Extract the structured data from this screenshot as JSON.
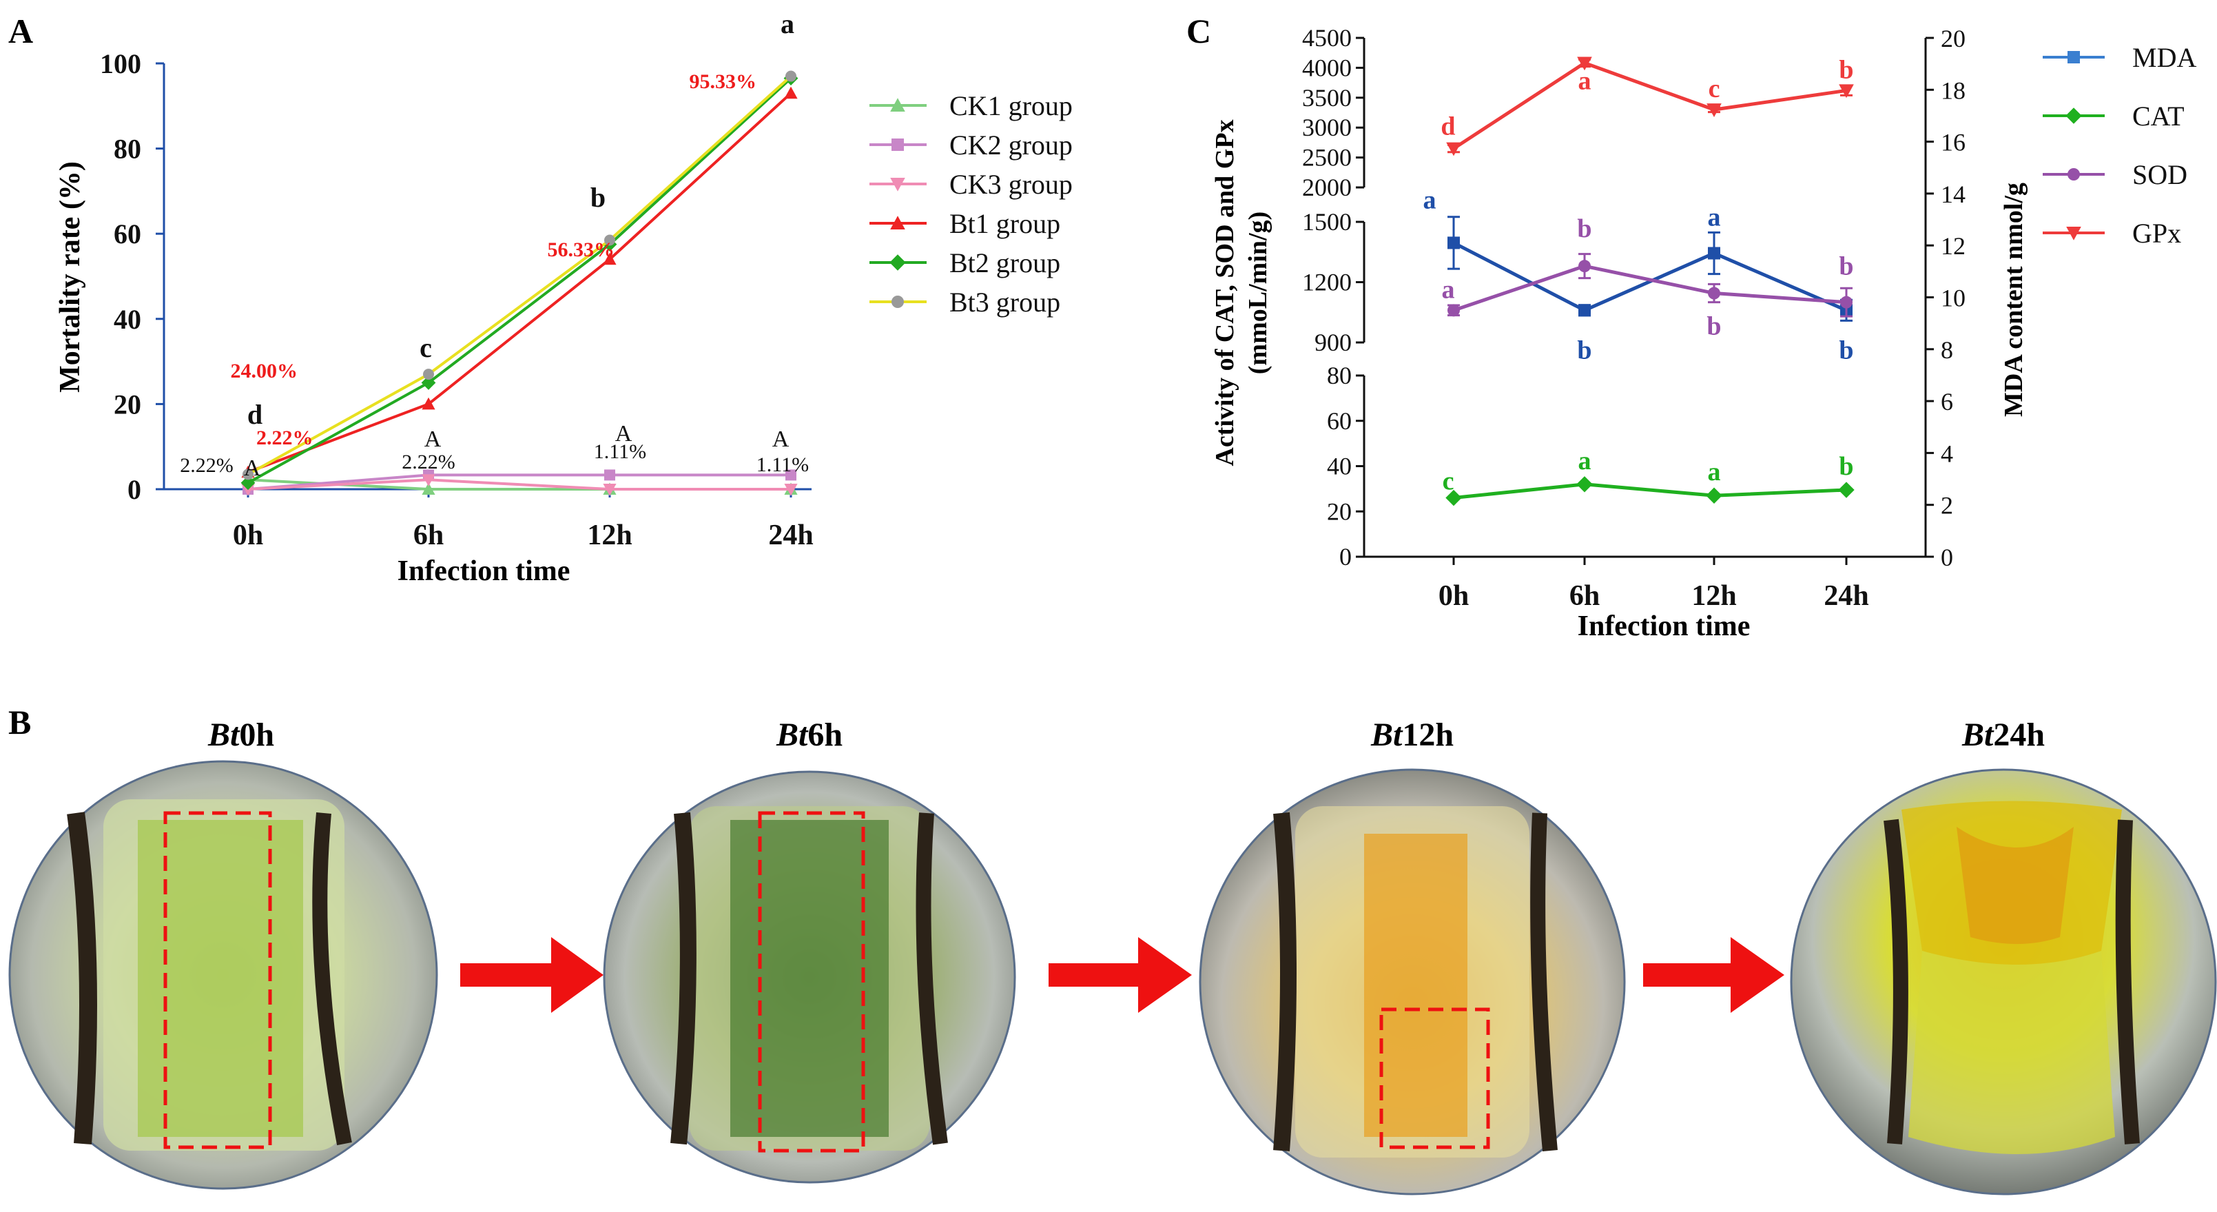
{
  "panel_labels": {
    "a": "A",
    "b": "B",
    "c": "C"
  },
  "colors": {
    "ck1": "#7fcf7f",
    "ck2": "#c886c8",
    "ck3": "#f08cb4",
    "bt1": "#ee2222",
    "bt2": "#22aa22",
    "bt3": "#e8e020",
    "bt3_marker": "#999999",
    "mda": "#1f4fa8",
    "mda_legend": "#3a7fd0",
    "cat": "#1fb01f",
    "sod": "#9650a8",
    "gpx": "#ee3b3b",
    "axis_blue": "#1f4fa8",
    "label_red": "#ee1c1c",
    "arrow_red": "#ee1111"
  },
  "chart_data": [
    {
      "id": "A",
      "type": "line",
      "xlabel": "Infection time",
      "ylabel": "Mortality rate (%)",
      "ylim": [
        0,
        100
      ],
      "yticks": [
        0,
        20,
        40,
        60,
        80,
        100
      ],
      "categories": [
        "0h",
        "6h",
        "12h",
        "24h"
      ],
      "series": [
        {
          "name": "CK1 group",
          "marker": "triangle-up",
          "color_key": "ck1",
          "values": [
            2.22,
            0,
            0,
            0
          ]
        },
        {
          "name": "CK2 group",
          "marker": "square",
          "color_key": "ck2",
          "values": [
            0,
            3.33,
            3.33,
            3.33
          ]
        },
        {
          "name": "CK3 group",
          "marker": "triangle-down",
          "color_key": "ck3",
          "values": [
            0,
            2.22,
            0,
            0
          ]
        },
        {
          "name": "Bt1 group",
          "marker": "triangle-up",
          "color_key": "bt1",
          "values": [
            4,
            20,
            54,
            93
          ]
        },
        {
          "name": "Bt2 group",
          "marker": "diamond",
          "color_key": "bt2",
          "values": [
            1.5,
            25,
            57.5,
            96.5
          ]
        },
        {
          "name": "Bt3 group",
          "marker": "circle",
          "color_key": "bt3",
          "values": [
            3.5,
            27,
            58.5,
            97
          ]
        }
      ],
      "bt_value_labels": [
        "2.22%",
        "24.00%",
        "56.33%",
        "95.33%"
      ],
      "bt_letters": [
        "d",
        "c",
        "b",
        "a"
      ],
      "ck_value_labels": [
        "2.22%",
        "2.22%",
        "1.11%",
        "1.11%"
      ],
      "ck_letters": [
        "A",
        "A",
        "A",
        "A"
      ]
    },
    {
      "id": "C",
      "type": "line",
      "xlabel": "Infection time",
      "ylabel_left": "Activity of CAT, SOD and GPx",
      "ylabel_left_sub": "(mmoL/min/g)",
      "ylabel_right": "MDA content nmol/g",
      "categories": [
        "0h",
        "6h",
        "12h",
        "24h"
      ],
      "left_axis_segments": [
        {
          "range": [
            0,
            80
          ],
          "ticks": [
            0,
            20,
            40,
            60,
            80
          ]
        },
        {
          "range": [
            900,
            1500
          ],
          "ticks": [
            900,
            1200,
            1500
          ]
        },
        {
          "range": [
            2000,
            4500
          ],
          "ticks": [
            2000,
            2500,
            3000,
            3500,
            4000,
            4500
          ]
        }
      ],
      "right_ylim": [
        0,
        20
      ],
      "right_ticks": [
        0,
        2,
        4,
        6,
        8,
        10,
        12,
        14,
        16,
        18,
        20
      ],
      "series": [
        {
          "name": "MDA",
          "axis": "right",
          "marker": "square",
          "color_key": "mda",
          "legend_color_key": "mda_legend",
          "values": [
            12.1,
            9.5,
            11.7,
            9.5
          ],
          "errors": [
            1.0,
            0.2,
            0.8,
            0.4
          ],
          "letters": [
            "a",
            "b",
            "a",
            "b"
          ]
        },
        {
          "name": "CAT",
          "axis": "left",
          "marker": "diamond",
          "color_key": "cat",
          "values": [
            26,
            32,
            27,
            29.5
          ],
          "errors": [
            0,
            0,
            0,
            0
          ],
          "letters": [
            "c",
            "a",
            "a",
            "b"
          ]
        },
        {
          "name": "SOD",
          "axis": "left",
          "marker": "circle",
          "color_key": "sod",
          "values": [
            1060,
            1280,
            1145,
            1100
          ],
          "errors": [
            25,
            60,
            45,
            70
          ],
          "letters": [
            "a",
            "b",
            "b",
            "b"
          ]
        },
        {
          "name": "GPx",
          "axis": "left",
          "marker": "triangle-down",
          "color_key": "gpx",
          "values": [
            2650,
            4080,
            3300,
            3620
          ],
          "errors": [
            60,
            60,
            40,
            80
          ],
          "letters": [
            "d",
            "a",
            "c",
            "b"
          ]
        }
      ]
    }
  ],
  "panel_b": {
    "labels": [
      {
        "italic": "Bt",
        "rest": "0h"
      },
      {
        "italic": "Bt",
        "rest": "6h"
      },
      {
        "italic": "Bt",
        "rest": "12h"
      },
      {
        "italic": "Bt",
        "rest": "24h"
      }
    ]
  }
}
